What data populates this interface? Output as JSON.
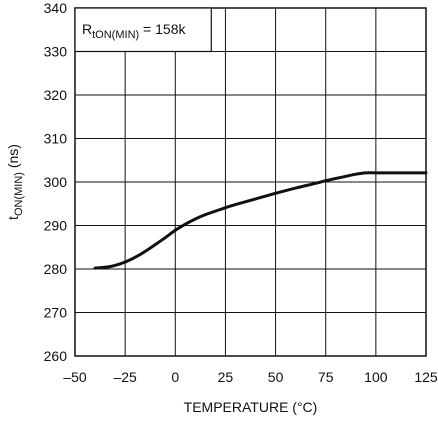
{
  "chart_data": {
    "type": "line",
    "title": "",
    "xlabel": "TEMPERATURE (°C)",
    "ylabel": {
      "main": "t",
      "sub": "ON(MIN)",
      "unit": " (ns)"
    },
    "xlim": [
      -50,
      125
    ],
    "ylim": [
      260,
      340
    ],
    "xticks": [
      -50,
      -25,
      0,
      25,
      50,
      75,
      100,
      125
    ],
    "xtick_labels": [
      "–50",
      "–25",
      "0",
      "25",
      "50",
      "75",
      "100",
      "125"
    ],
    "yticks": [
      260,
      270,
      280,
      290,
      300,
      310,
      320,
      330,
      340
    ],
    "grid": true,
    "annotation": {
      "main": "R",
      "sub": "tON(MIN)",
      "suffix": " = 158k"
    },
    "series": [
      {
        "x": [
          -40,
          -32,
          -25,
          -18,
          -10,
          -5,
          0,
          5,
          10,
          15,
          20,
          25,
          30,
          40,
          50,
          60,
          70,
          75,
          80,
          85,
          90,
          95,
          100,
          110,
          125
        ],
        "y": [
          280.2,
          280.6,
          281.6,
          283.2,
          285.6,
          287.2,
          288.9,
          290.3,
          291.5,
          292.5,
          293.3,
          294.1,
          294.8,
          296.1,
          297.4,
          298.6,
          299.7,
          300.3,
          300.8,
          301.3,
          301.8,
          302.1,
          302.1,
          302.1,
          302.1
        ]
      }
    ]
  }
}
